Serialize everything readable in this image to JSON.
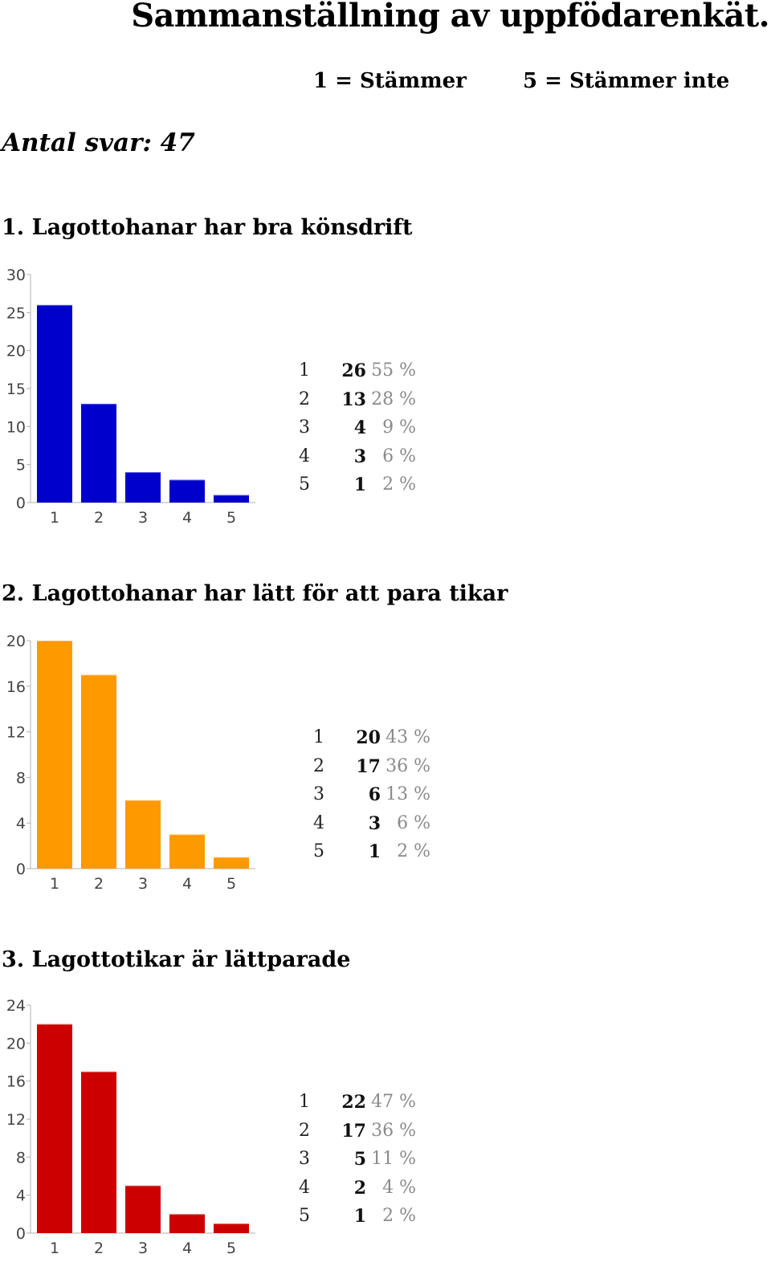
{
  "document": {
    "title": "Sammanställning av uppfödarenkät.",
    "scale_low": "1 = Stämmer",
    "scale_high": "5 = Stämmer inte",
    "responses": "Antal svar: 47"
  },
  "questions": [
    {
      "title": "1. Lagottohanar har bra könsdrift",
      "stats": [
        {
          "value": "1",
          "count": "26",
          "percent": "55 %"
        },
        {
          "value": "2",
          "count": "13",
          "percent": "28 %"
        },
        {
          "value": "3",
          "count": "4",
          "percent": "9 %"
        },
        {
          "value": "4",
          "count": "3",
          "percent": "6 %"
        },
        {
          "value": "5",
          "count": "1",
          "percent": "2 %"
        }
      ]
    },
    {
      "title": "2. Lagottohanar har lätt för att para tikar",
      "stats": [
        {
          "value": "1",
          "count": "20",
          "percent": "43 %"
        },
        {
          "value": "2",
          "count": "17",
          "percent": "36 %"
        },
        {
          "value": "3",
          "count": "6",
          "percent": "13 %"
        },
        {
          "value": "4",
          "count": "3",
          "percent": "6 %"
        },
        {
          "value": "5",
          "count": "1",
          "percent": "2 %"
        }
      ]
    },
    {
      "title": "3. Lagottotikar är lättparade",
      "stats": [
        {
          "value": "1",
          "count": "22",
          "percent": "47 %"
        },
        {
          "value": "2",
          "count": "17",
          "percent": "36 %"
        },
        {
          "value": "3",
          "count": "5",
          "percent": "11 %"
        },
        {
          "value": "4",
          "count": "2",
          "percent": "4 %"
        },
        {
          "value": "5",
          "count": "1",
          "percent": "2 %"
        }
      ]
    }
  ],
  "chart_data": [
    {
      "type": "bar",
      "categories": [
        "1",
        "2",
        "3",
        "4",
        "5"
      ],
      "values": [
        26,
        13,
        4,
        3,
        1
      ],
      "ylim": [
        0,
        30
      ],
      "yticks": [
        0,
        5,
        10,
        15,
        20,
        25,
        30
      ],
      "color": "#0000cc",
      "grid": false
    },
    {
      "type": "bar",
      "categories": [
        "1",
        "2",
        "3",
        "4",
        "5"
      ],
      "values": [
        20,
        17,
        6,
        3,
        1
      ],
      "ylim": [
        0,
        20
      ],
      "yticks": [
        0,
        4,
        8,
        12,
        16,
        20
      ],
      "color": "#ff9900",
      "grid": false
    },
    {
      "type": "bar",
      "categories": [
        "1",
        "2",
        "3",
        "4",
        "5"
      ],
      "values": [
        22,
        17,
        5,
        2,
        1
      ],
      "ylim": [
        0,
        24
      ],
      "yticks": [
        0,
        4,
        8,
        12,
        16,
        20,
        24
      ],
      "color": "#cc0000",
      "grid": false
    }
  ]
}
